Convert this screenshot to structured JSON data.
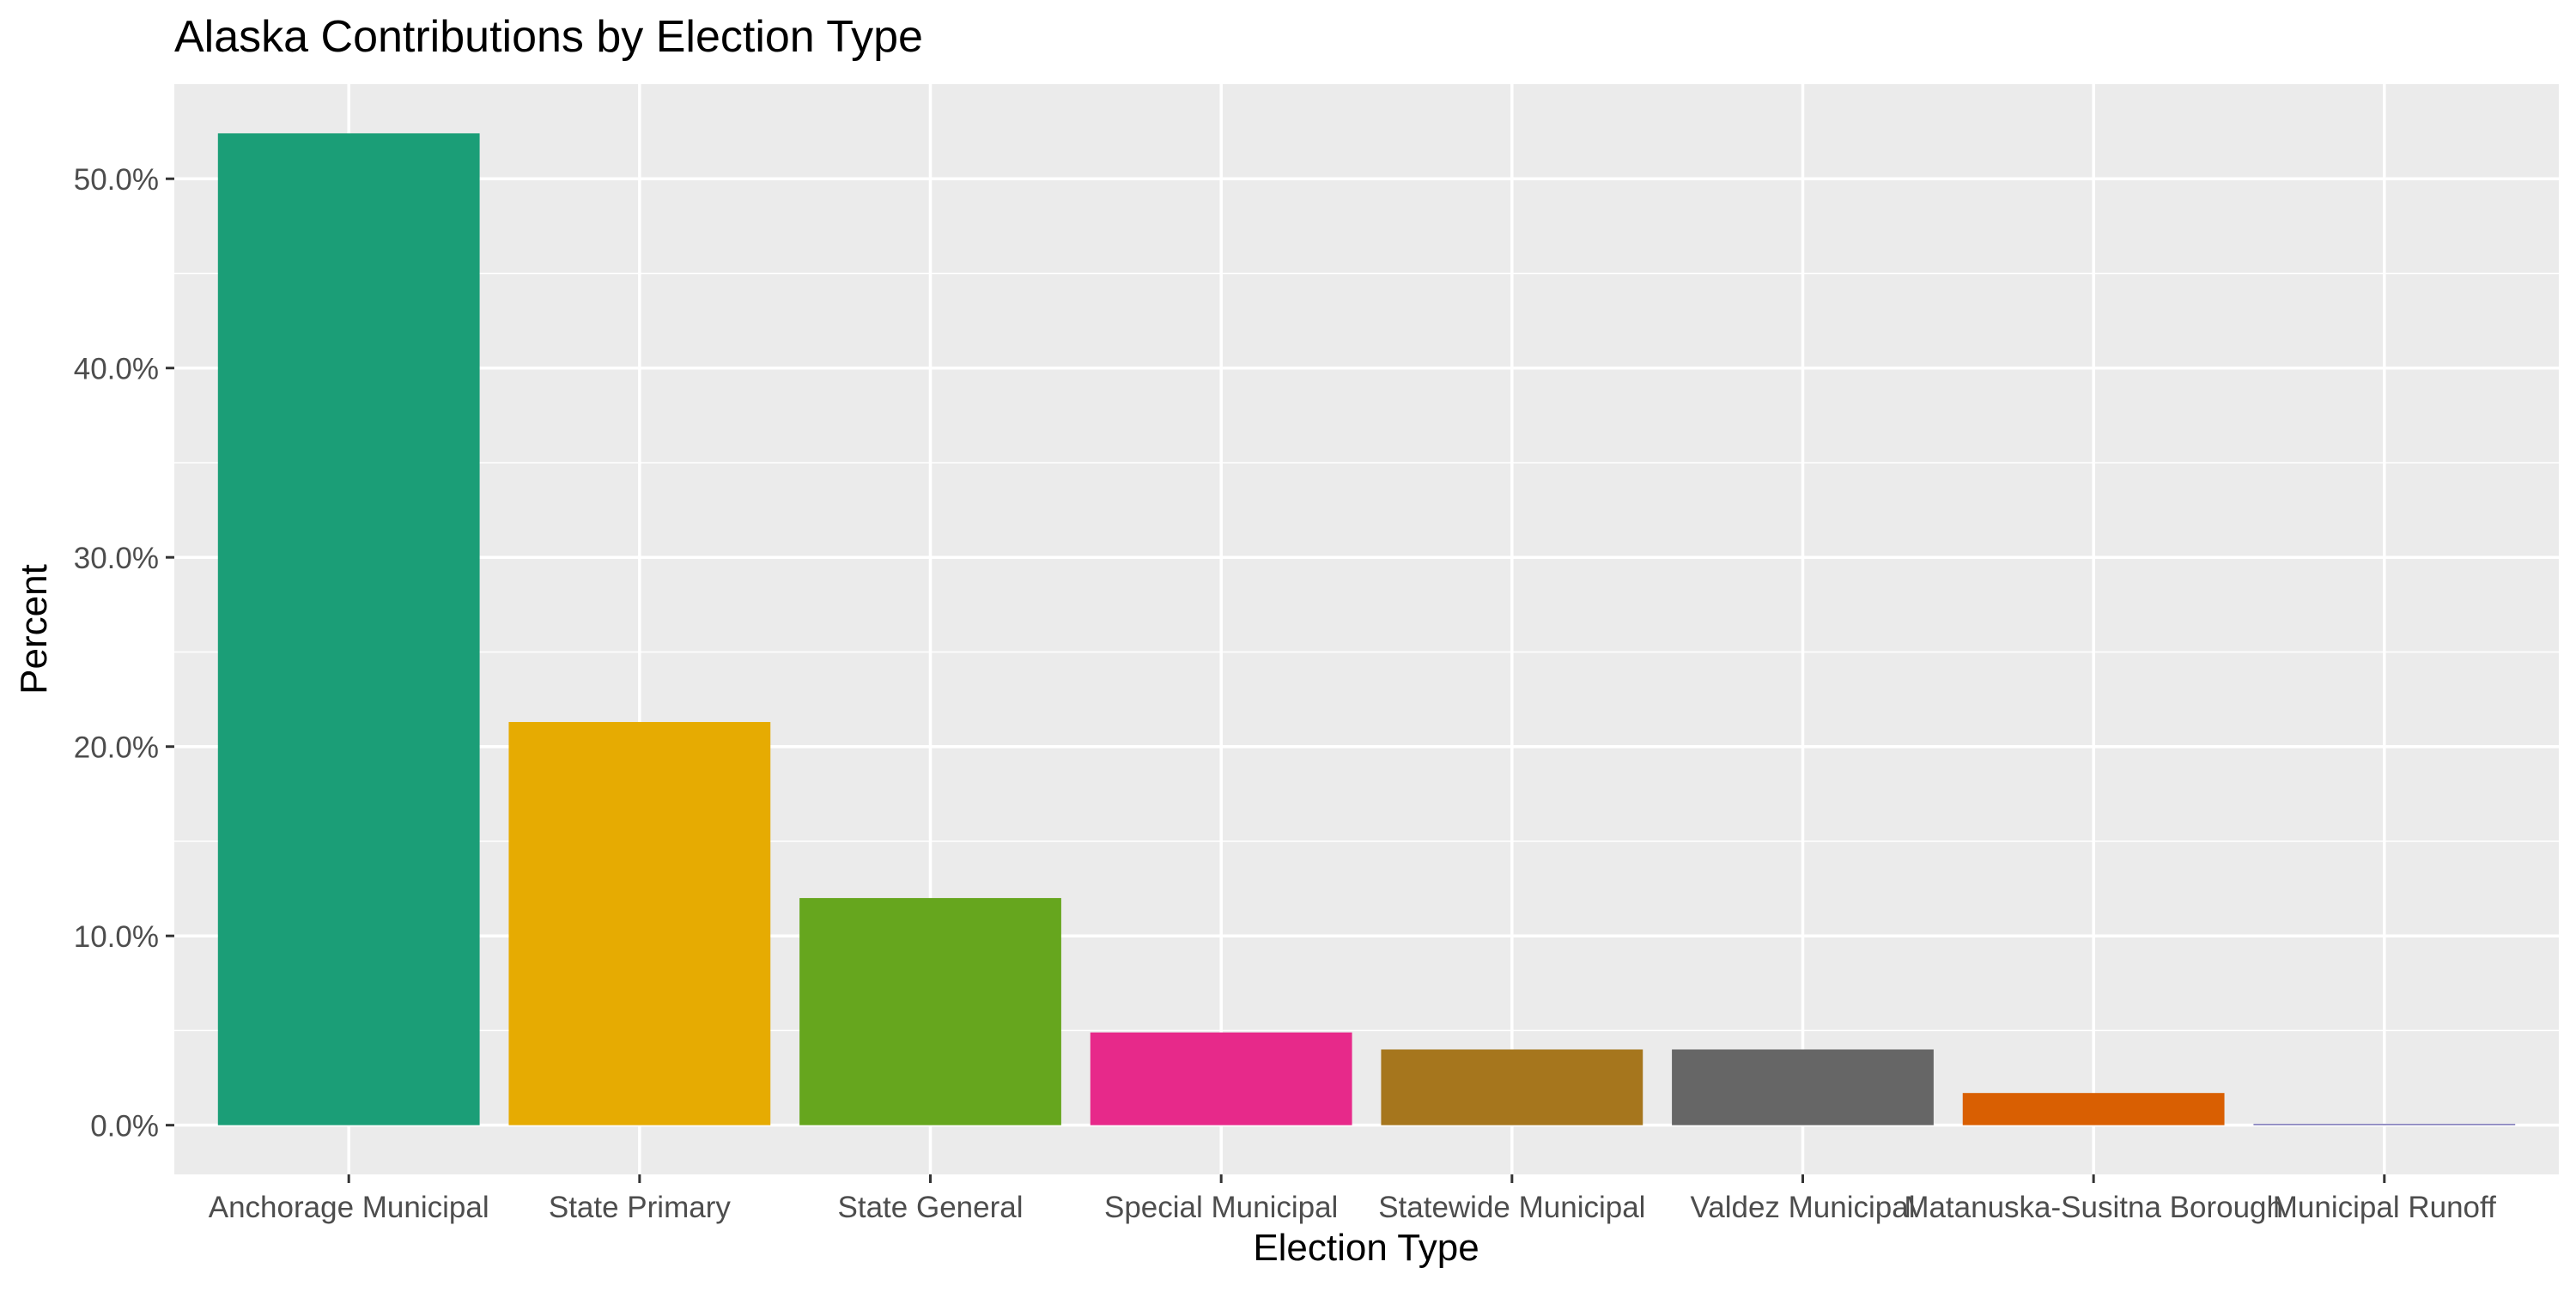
{
  "chart_data": {
    "type": "bar",
    "title": "Alaska Contributions by Election Type",
    "xlabel": "Election Type",
    "ylabel": "Percent",
    "categories": [
      "Anchorage Municipal",
      "State Primary",
      "State General",
      "Special Municipal",
      "Statewide Municipal",
      "Valdez Municipal",
      "Matanuska-Susitna Borough",
      "Municipal Runoff"
    ],
    "values": [
      52.4,
      21.3,
      12.0,
      4.9,
      4.0,
      4.0,
      1.7,
      0.05
    ],
    "colors": [
      "#1b9e77",
      "#e6ab02",
      "#66a61e",
      "#e7298a",
      "#a6761d",
      "#666666",
      "#d95f02",
      "#7570b3"
    ],
    "ylim": [
      -2.6,
      55.0
    ],
    "yticks": [
      0,
      10,
      20,
      30,
      40,
      50
    ],
    "ytick_labels": [
      "0.0%",
      "10.0%",
      "20.0%",
      "30.0%",
      "40.0%",
      "50.0%"
    ],
    "grid": true,
    "legend": "none",
    "panel_background": "#ebebeb",
    "grid_color": "#ffffff"
  }
}
